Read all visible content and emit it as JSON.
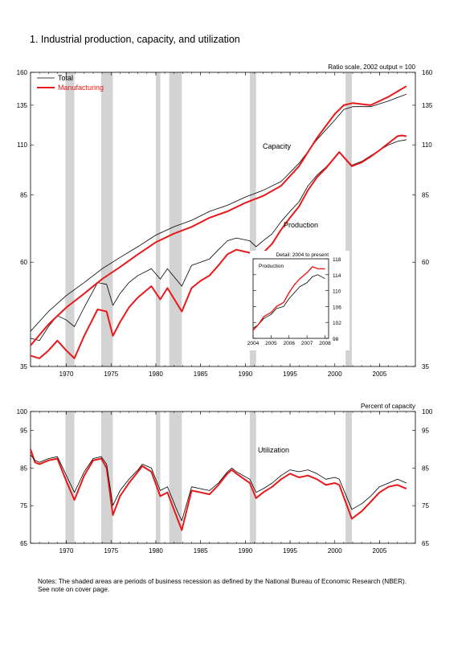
{
  "page": {
    "title": "1.  Industrial production, capacity, and utilization",
    "notes": [
      "Notes: The shaded areas are periods of business recession as defined by the National Bureau of Economic Research (NBER).",
      "See note on cover page."
    ]
  },
  "colors": {
    "total": "#000000",
    "manufacturing": "#e8191a",
    "recession": "#d3d3d3"
  },
  "recessions": [
    [
      1969.9,
      1970.9
    ],
    [
      1973.9,
      1975.2
    ],
    [
      1980.0,
      1980.5
    ],
    [
      1981.5,
      1982.9
    ],
    [
      1990.5,
      1991.2
    ],
    [
      2001.2,
      2001.9
    ]
  ],
  "chart_data": [
    {
      "id": "main",
      "type": "line",
      "scale": "log",
      "note": "Ratio scale, 2002 output = 100",
      "ylim": [
        35,
        160
      ],
      "yticks": [
        35,
        60,
        85,
        110,
        135,
        160
      ],
      "xlim": [
        1966,
        2009
      ],
      "xticks": [
        1970,
        1975,
        1980,
        1985,
        1990,
        1995,
        2000,
        2005
      ],
      "legend": [
        "Total",
        "Manufacturing"
      ],
      "legend_position": "top-left",
      "annotations": [
        "Capacity",
        "Production"
      ],
      "series": [
        {
          "name": "Total",
          "kind": "capacity",
          "x": [
            1966,
            1968,
            1970,
            1972,
            1974,
            1976,
            1978,
            1980,
            1982,
            1984,
            1986,
            1988,
            1990,
            1992,
            1994,
            1996,
            1998,
            2000,
            2001,
            2002,
            2004,
            2006,
            2008
          ],
          "y": [
            42,
            46.5,
            50.5,
            54,
            58,
            61.5,
            65,
            69,
            72,
            74.5,
            78,
            80.5,
            84,
            87,
            91,
            100,
            113,
            125,
            132,
            134,
            134,
            138,
            143
          ]
        },
        {
          "name": "Manufacturing",
          "kind": "capacity",
          "x": [
            1966,
            1968,
            1970,
            1972,
            1974,
            1976,
            1978,
            1980,
            1982,
            1984,
            1986,
            1988,
            1990,
            1992,
            1994,
            1996,
            1998,
            2000,
            2001,
            2002,
            2004,
            2006,
            2008
          ],
          "y": [
            39,
            43.5,
            47.5,
            51,
            55,
            58.5,
            62.5,
            66.5,
            69.5,
            72,
            75.5,
            78,
            81.5,
            84.5,
            89,
            98.5,
            114,
            129,
            135,
            136.5,
            135,
            141,
            149
          ]
        },
        {
          "name": "Total",
          "kind": "production",
          "x": [
            1966,
            1967,
            1968,
            1969,
            1970,
            1970.9,
            1972,
            1973.5,
            1974.5,
            1975.2,
            1976,
            1977,
            1978,
            1979.5,
            1980.5,
            1981.3,
            1982.9,
            1984,
            1985,
            1986,
            1987,
            1988,
            1989,
            1990.5,
            1991.2,
            1992,
            1993,
            1994,
            1995,
            1996,
            1997,
            1998,
            1999,
            2000.5,
            2001.9,
            2003,
            2004,
            2005,
            2006,
            2007,
            2008
          ],
          "y": [
            40.5,
            40,
            43,
            45.5,
            44.5,
            43,
            47.5,
            54,
            53.5,
            48,
            51,
            54,
            56,
            58,
            55,
            58,
            53,
            59,
            60,
            61,
            64,
            67,
            68,
            67,
            65,
            67,
            69.5,
            74,
            78,
            82,
            89,
            94,
            98,
            106,
            99,
            101,
            104,
            107,
            110,
            112,
            113
          ]
        },
        {
          "name": "Manufacturing",
          "kind": "production",
          "x": [
            1966,
            1967,
            1968,
            1969,
            1970,
            1970.9,
            1972,
            1973.5,
            1974.5,
            1975.2,
            1976,
            1977,
            1978,
            1979.5,
            1980.5,
            1981.3,
            1982.9,
            1984,
            1985,
            1986,
            1987,
            1988,
            1989,
            1990.5,
            1991.2,
            1992,
            1993,
            1994,
            1995,
            1996,
            1997,
            1998,
            1999,
            2000.5,
            2001.9,
            2003,
            2004,
            2005,
            2006,
            2007,
            2007.5,
            2008
          ],
          "y": [
            37,
            36.5,
            38,
            40,
            38,
            36.5,
            41,
            47,
            46.5,
            41,
            44,
            47.5,
            50,
            53,
            49.5,
            52.5,
            46.5,
            52.5,
            54.5,
            56,
            59,
            62.5,
            64,
            63,
            61,
            63,
            66,
            71,
            75.5,
            80,
            87,
            93,
            97.5,
            106,
            98.5,
            100.5,
            103.5,
            107,
            111,
            115,
            115.5,
            115
          ]
        }
      ]
    },
    {
      "id": "detail",
      "type": "line",
      "title": "Detail: 2004 to present",
      "annotations": [
        "Production"
      ],
      "ylim": [
        98,
        118
      ],
      "yticks": [
        98,
        102,
        106,
        110,
        114,
        118
      ],
      "xlim": [
        2004,
        2008.2
      ],
      "xticks": [
        2004,
        2005,
        2006,
        2007,
        2008
      ],
      "series": [
        {
          "name": "Total",
          "x": [
            2004,
            2004.3,
            2004.6,
            2005,
            2005.3,
            2005.7,
            2006,
            2006.3,
            2006.6,
            2007,
            2007.3,
            2007.6,
            2008
          ],
          "y": [
            100.5,
            101.5,
            103,
            104,
            105.5,
            106,
            108,
            109.5,
            111,
            112,
            113.5,
            114,
            113
          ]
        },
        {
          "name": "Manufacturing",
          "x": [
            2004,
            2004.3,
            2004.6,
            2005,
            2005.3,
            2005.7,
            2006,
            2006.3,
            2006.6,
            2007,
            2007.3,
            2007.6,
            2008
          ],
          "y": [
            100,
            101.5,
            103.5,
            104.5,
            106,
            107,
            109.5,
            111.5,
            113,
            114.5,
            116,
            115.5,
            115.5
          ]
        }
      ]
    },
    {
      "id": "utilization",
      "type": "line",
      "ylabel": "Percent of capacity",
      "annotations": [
        "Utilization"
      ],
      "ylim": [
        65,
        100
      ],
      "yticks": [
        65,
        75,
        85,
        95,
        100
      ],
      "xlim": [
        1966,
        2009
      ],
      "xticks": [
        1970,
        1975,
        1980,
        1985,
        1990,
        1995,
        2000,
        2005
      ],
      "series": [
        {
          "name": "Total",
          "x": [
            1966,
            1966.5,
            1967,
            1968,
            1969,
            1970,
            1970.9,
            1972,
            1973,
            1973.9,
            1974.5,
            1975.2,
            1976,
            1977,
            1978,
            1978.5,
            1979.5,
            1980.5,
            1981.3,
            1982.5,
            1982.9,
            1984,
            1985,
            1986,
            1987,
            1988,
            1988.5,
            1989,
            1990.5,
            1991.2,
            1992,
            1993,
            1994,
            1995,
            1996,
            1997,
            1998,
            1999,
            2000,
            2000.5,
            2001.9,
            2003,
            2004,
            2005,
            2006,
            2007,
            2008
          ],
          "y": [
            88.5,
            87,
            86.5,
            87.5,
            88,
            83,
            78.5,
            84,
            87.5,
            88,
            86,
            75,
            79,
            82,
            84.5,
            86,
            85,
            79,
            80,
            73,
            71,
            80,
            79.5,
            79,
            81,
            84,
            85,
            84,
            82,
            78.5,
            79.5,
            81,
            83,
            84.5,
            84,
            84.5,
            83.5,
            82,
            82.5,
            82,
            74,
            75.5,
            77.5,
            80,
            81,
            82,
            81
          ]
        },
        {
          "name": "Manufacturing",
          "x": [
            1966,
            1966.5,
            1967,
            1968,
            1969,
            1970,
            1970.9,
            1972,
            1973,
            1973.9,
            1974.5,
            1975.2,
            1976,
            1977,
            1978,
            1978.5,
            1979.5,
            1980.5,
            1981.3,
            1982.5,
            1982.9,
            1984,
            1985,
            1986,
            1987,
            1988,
            1988.5,
            1989,
            1990.5,
            1991.2,
            1992,
            1993,
            1994,
            1995,
            1996,
            1997,
            1998,
            1999,
            2000,
            2000.5,
            2001.9,
            2003,
            2004,
            2005,
            2006,
            2007,
            2008
          ],
          "y": [
            90,
            86.5,
            86,
            87,
            87.5,
            81.5,
            76.5,
            83,
            87,
            87.5,
            85,
            72.5,
            77.5,
            81,
            84,
            85.5,
            84,
            77.5,
            78.5,
            71,
            68.5,
            79,
            78.5,
            78,
            80.5,
            83.5,
            84.5,
            83.5,
            81,
            77,
            78.5,
            80,
            82,
            83.5,
            82.5,
            83,
            82,
            80.5,
            81,
            80.5,
            71.5,
            73.5,
            76,
            78.5,
            80,
            80.5,
            79.5
          ]
        }
      ]
    }
  ]
}
